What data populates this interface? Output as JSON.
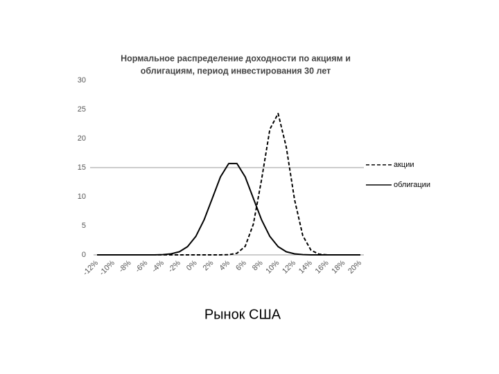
{
  "chart_data": {
    "type": "line",
    "title": [
      "Нормальное распределение доходности по акциям и",
      "облигациям, период инвестирования 30 лет"
    ],
    "caption": "Рынок США",
    "categories": [
      "-12%",
      null,
      "-10%",
      null,
      "-8%",
      null,
      "-6%",
      null,
      "-4%",
      null,
      "-2%",
      null,
      "0%",
      null,
      "2%",
      null,
      "4%",
      null,
      "6%",
      null,
      "8%",
      null,
      "10%",
      null,
      "12%",
      null,
      "14%",
      null,
      "16%",
      null,
      "18%",
      null,
      "20%"
    ],
    "series": [
      {
        "name": "акции",
        "color": "#000000",
        "dash": true,
        "values": [
          0,
          0,
          0,
          0,
          0,
          0,
          0,
          0,
          0,
          0,
          0,
          0,
          0,
          0,
          0,
          0,
          0.03,
          0.27,
          1.46,
          5.3,
          13.0,
          21.6,
          24.3,
          18.5,
          9.5,
          3.3,
          0.78,
          0.12,
          0,
          0,
          0,
          0,
          0
        ]
      },
      {
        "name": "облигации",
        "color": "#000000",
        "dash": false,
        "values": [
          0,
          0,
          0,
          0,
          0,
          0,
          0,
          0,
          0.05,
          0.18,
          0.54,
          1.42,
          3.17,
          6.0,
          9.7,
          13.4,
          15.7,
          15.7,
          13.4,
          9.7,
          6.0,
          3.17,
          1.42,
          0.54,
          0.18,
          0.05,
          0,
          0,
          0,
          0,
          0,
          0,
          0
        ]
      }
    ],
    "ylim": [
      0,
      30
    ],
    "yticks": [
      0,
      5,
      10,
      15,
      20,
      25,
      30
    ],
    "reference_line": 15,
    "legend": "right"
  }
}
